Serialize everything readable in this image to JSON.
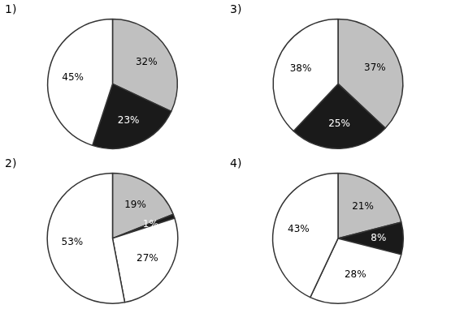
{
  "chart_data": [
    {
      "type": "pie",
      "title": "1)",
      "values": [
        32,
        23,
        45
      ],
      "value_labels": [
        "32%",
        "23%",
        "45%"
      ],
      "colors": [
        "#c0c0c0",
        "#1a1a1a",
        "white"
      ],
      "data_labels": true
    },
    {
      "type": "pie",
      "title": "2)",
      "values": [
        19,
        1,
        27,
        53
      ],
      "value_labels": [
        "19%",
        "1%",
        "27%",
        "53%"
      ],
      "colors": [
        "#c0c0c0",
        "#1a1a1a",
        "white",
        "white"
      ],
      "data_labels": true
    },
    {
      "type": "pie",
      "title": "3)",
      "values": [
        37,
        25,
        38
      ],
      "value_labels": [
        "37%",
        "25%",
        "38%"
      ],
      "colors": [
        "#c0c0c0",
        "#1a1a1a",
        "white"
      ],
      "data_labels": true
    },
    {
      "type": "pie",
      "title": "4)",
      "values": [
        21,
        8,
        28,
        43
      ],
      "value_labels": [
        "21%",
        "8%",
        "28%",
        "43%"
      ],
      "colors": [
        "#c0c0c0",
        "#1a1a1a",
        "white",
        "white"
      ],
      "data_labels": true
    }
  ]
}
